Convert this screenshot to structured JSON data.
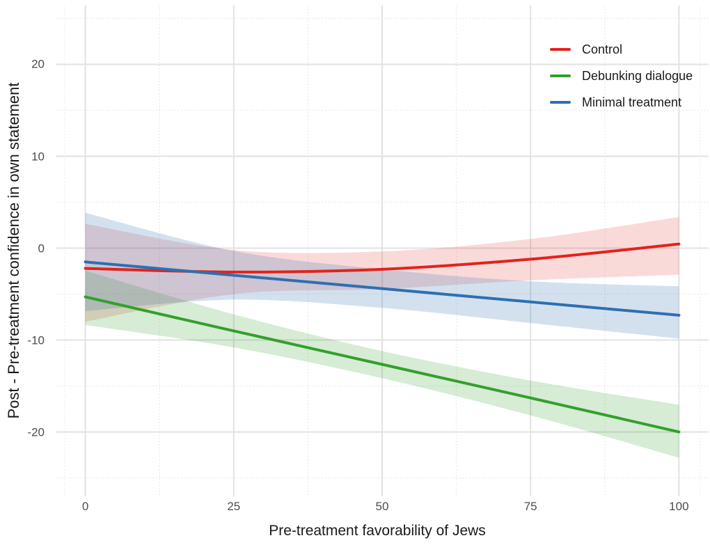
{
  "chart_data": {
    "type": "line",
    "title": "",
    "xlabel": "Pre-treatment favorability of Jews",
    "ylabel": "Post - Pre-treatment confidence in own statement",
    "xlim": [
      -5,
      105
    ],
    "ylim": [
      -27,
      26.4
    ],
    "x_ticks": [
      0,
      25,
      50,
      75,
      100
    ],
    "y_ticks": [
      -20,
      -10,
      0,
      10,
      20
    ],
    "x_minor_ticks": [
      12.5,
      37.5,
      62.5,
      87.5
    ],
    "y_minor_ticks": [
      -25,
      -15,
      -5,
      5,
      15,
      25
    ],
    "grid": "white background, light grey major gridlines, dotted lighter minor gridlines",
    "legend_position": "top-right inside panel, no border, no title",
    "x": [
      0,
      25,
      50,
      75,
      100
    ],
    "series": [
      {
        "name": "Control",
        "color": "#E2231C",
        "band_alpha": 0.17,
        "y": [
          -2.2,
          -2.6,
          -2.3,
          -1.2,
          0.45
        ],
        "ci_upper": [
          2.65,
          -0.2,
          -0.35,
          1.0,
          3.4
        ],
        "ci_lower": [
          -8.0,
          -5.0,
          -4.45,
          -3.5,
          -2.9
        ]
      },
      {
        "name": "Debunking dialogue",
        "color": "#33A02C",
        "band_alpha": 0.2,
        "y": [
          -5.3,
          -9.0,
          -12.65,
          -16.3,
          -20.0
        ],
        "ci_upper": [
          -2.45,
          -7.2,
          -11.2,
          -14.4,
          -17.05
        ],
        "ci_lower": [
          -8.35,
          -10.8,
          -14.15,
          -18.2,
          -22.8
        ]
      },
      {
        "name": "Minimal treatment",
        "color": "#2E6FB2",
        "band_alpha": 0.21,
        "y": [
          -1.5,
          -2.95,
          -4.4,
          -5.85,
          -7.3
        ],
        "ci_upper": [
          3.85,
          -0.3,
          -2.3,
          -3.6,
          -4.15
        ],
        "ci_lower": [
          -6.85,
          -5.6,
          -6.5,
          -8.15,
          -9.85
        ]
      }
    ]
  }
}
